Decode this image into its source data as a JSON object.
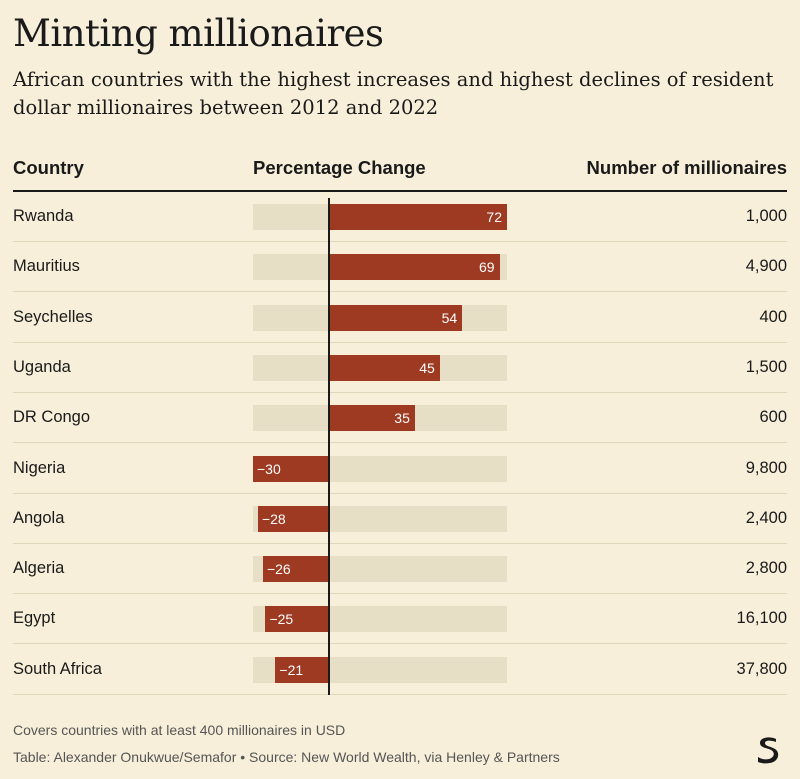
{
  "header": {
    "title": "Minting millionaires",
    "subtitle": "African countries with the highest increases and highest declines of resident dollar millionaires between 2012 and 2022"
  },
  "columns": {
    "country": "Country",
    "percentage": "Percentage Change",
    "number": "Number of millionaires"
  },
  "chart_data": {
    "type": "bar",
    "orientation": "horizontal",
    "title": "Minting millionaires",
    "xlabel": "Percentage Change",
    "xlim": [
      -30,
      72
    ],
    "categories": [
      "Rwanda",
      "Mauritius",
      "Seychelles",
      "Uganda",
      "DR Congo",
      "Nigeria",
      "Angola",
      "Algeria",
      "Egypt",
      "South Africa"
    ],
    "values": [
      72,
      69,
      54,
      45,
      35,
      -30,
      -28,
      -26,
      -25,
      -21
    ],
    "value_labels": [
      "72",
      "69",
      "54",
      "45",
      "35",
      "−30",
      "−28",
      "−26",
      "−25",
      "−21"
    ],
    "millionaires": [
      "1,000",
      "4,900",
      "400",
      "1,500",
      "600",
      "9,800",
      "2,400",
      "2,800",
      "16,100",
      "37,800"
    ],
    "bar_color": "#9e3a21",
    "track_color": "#e6dfc6"
  },
  "footer": {
    "note": "Covers countries with at least 400 millionaires in USD",
    "source": "Table: Alexander Onukwue/Semafor • Source: New World Wealth, via Henley & Partners"
  },
  "logo": {
    "icon": "semafor-logo-icon"
  }
}
